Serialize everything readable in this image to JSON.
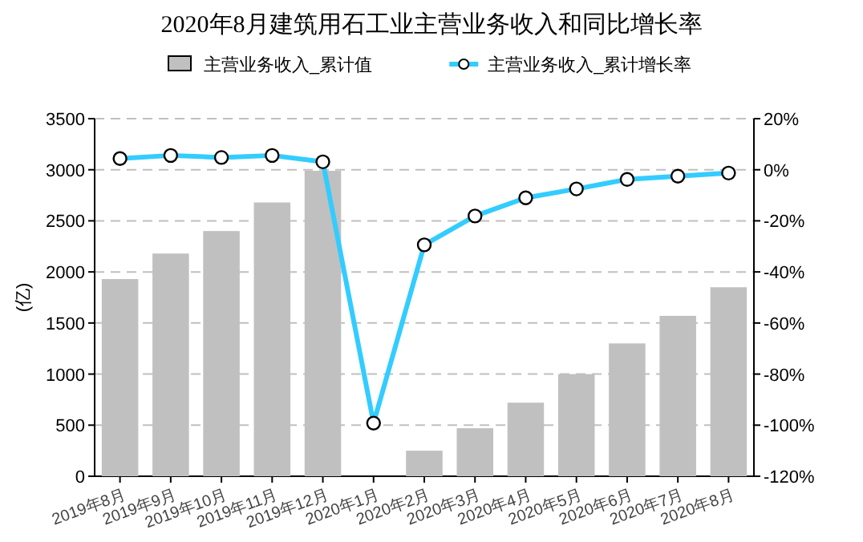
{
  "chart_data": {
    "type": "bar",
    "title": "2020年8月建筑用石工业主营业务收入和同比增长率",
    "ylabel": "(亿)",
    "categories": [
      "2019年8月",
      "2019年9月",
      "2019年10月",
      "2019年11月",
      "2019年12月",
      "2020年1月",
      "2020年2月",
      "2020年3月",
      "2020年4月",
      "2020年5月",
      "2020年6月",
      "2020年7月",
      "2020年8月"
    ],
    "series": [
      {
        "name": "主营业务收入_累计值",
        "color": "#c0c0c0",
        "values": [
          1930,
          2180,
          2400,
          2680,
          2990,
          null,
          250,
          470,
          720,
          1000,
          1300,
          1570,
          1850
        ]
      },
      {
        "name": "主营业务收入_累计增长率",
        "type": "line",
        "axis": "y2",
        "color": "#33ccff",
        "values": [
          4.4,
          5.6,
          4.8,
          5.6,
          3.1,
          -99.2,
          -29.4,
          -18.1,
          -11.0,
          -7.5,
          -3.8,
          -2.5,
          -1.3
        ]
      }
    ],
    "ylim": [
      0,
      3500
    ],
    "yticks": [
      0,
      500,
      1000,
      1500,
      2000,
      2500,
      3000,
      3500
    ],
    "y2lim": [
      -120,
      20
    ],
    "y2ticks": [
      {
        "value": -120,
        "label": "-120%"
      },
      {
        "value": -100,
        "label": "-100%"
      },
      {
        "value": -80,
        "label": "-80%"
      },
      {
        "value": -60,
        "label": "-60%"
      },
      {
        "value": -40,
        "label": "-40%"
      },
      {
        "value": -20,
        "label": "-20%"
      },
      {
        "value": 0,
        "label": "0%"
      },
      {
        "value": 20,
        "label": "20%"
      }
    ],
    "grid": "y",
    "legend": "top",
    "marker": "circle",
    "line_style": "solid"
  }
}
